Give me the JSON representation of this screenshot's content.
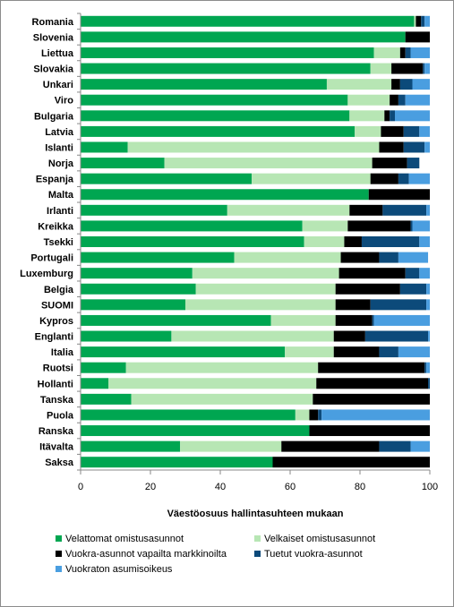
{
  "chart_data": {
    "type": "bar",
    "orientation": "horizontal",
    "stacked": true,
    "xlabel": "Väestöosuus hallintasuhteen mukaan",
    "ylabel": "",
    "xlim": [
      0,
      100
    ],
    "xticks": [
      0,
      20,
      40,
      60,
      80,
      100
    ],
    "grid": false,
    "legend_position": "bottom",
    "categories": [
      "Romania",
      "Slovenia",
      "Liettua",
      "Slovakia",
      "Unkari",
      "Viro",
      "Bulgaria",
      "Latvia",
      "Islanti",
      "Norja",
      "Espanja",
      "Malta",
      "Irlanti",
      "Kreikka",
      "Tsekki",
      "Portugali",
      "Luxemburg",
      "Belgia",
      "SUOMI",
      "Kypros",
      "Englanti",
      "Italia",
      "Ruotsi",
      "Hollanti",
      "Tanska",
      "Puola",
      "Ranska",
      "Itävalta",
      "Saksa"
    ],
    "series": [
      {
        "name": "Velattomat omistusasunnot",
        "color": "#00a651",
        "values": [
          95.5,
          93,
          84,
          83,
          70.5,
          76.5,
          77,
          78.5,
          13.5,
          24,
          49,
          82.5,
          42,
          63.5,
          64,
          44,
          32,
          33,
          30,
          54.5,
          26,
          58.5,
          13,
          8,
          14.5,
          61.5,
          65.5,
          28.5,
          55
        ]
      },
      {
        "name": "Velkaiset omistusasunnot",
        "color": "#b7e6b4",
        "values": [
          0.5,
          0,
          7.5,
          6,
          18.5,
          12,
          10,
          7.5,
          72,
          59.5,
          34,
          0,
          35,
          13,
          11.5,
          30.5,
          42,
          40,
          43,
          18.5,
          46.5,
          14,
          55,
          59.5,
          52,
          4,
          0,
          29,
          0
        ]
      },
      {
        "name": "Vuokra-asunnot vapailta markkinoilta",
        "color": "#000000",
        "values": [
          1.5,
          7,
          1.5,
          9,
          2.5,
          2.5,
          1.5,
          6.5,
          7,
          10,
          8,
          17.5,
          9.5,
          18,
          5,
          11,
          19,
          18.5,
          10,
          10.5,
          9,
          13,
          30.5,
          32,
          33.5,
          2.5,
          34.5,
          28,
          45
        ]
      },
      {
        "name": "Tuetut vuokra-asunnot",
        "color": "#0c4a7a",
        "values": [
          1,
          0,
          1.5,
          0.5,
          3.5,
          2,
          1.5,
          4.5,
          6,
          3.5,
          3,
          0,
          12.5,
          0.5,
          16.5,
          5.5,
          4,
          7.5,
          16,
          0.5,
          18,
          5.5,
          0.5,
          0.5,
          0,
          1,
          0,
          9,
          0
        ]
      },
      {
        "name": "Vuokraton asumisoikeus",
        "color": "#4a9ee0",
        "values": [
          1.5,
          0,
          5.5,
          1.5,
          5,
          7,
          10,
          3,
          1.5,
          0,
          6,
          0,
          1,
          5,
          3,
          8.5,
          3,
          1,
          1,
          16,
          0.5,
          9,
          1,
          0,
          0,
          31,
          0,
          5.5,
          0
        ]
      }
    ]
  }
}
